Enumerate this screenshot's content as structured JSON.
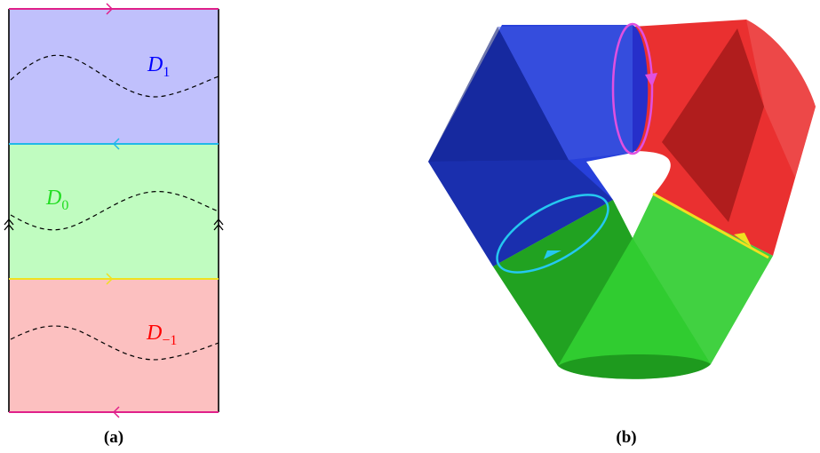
{
  "panel_a": {
    "caption": "(a)",
    "regions": [
      {
        "label": "D",
        "subscript": "1",
        "color": "#0000ff",
        "fill": "#c0c0fc"
      },
      {
        "label": "D",
        "subscript": "0",
        "color": "#22dd22",
        "fill": "#c0fcc0"
      },
      {
        "label": "D",
        "subscript": "−1",
        "color": "#ff0000",
        "fill": "#fcc0c0"
      }
    ],
    "boundary_colors": {
      "top": "#e0208a",
      "between_1_0": "#20b8e8",
      "between_0_-1": "#f0e020",
      "bottom": "#e0208a",
      "sides": "#000000"
    }
  },
  "panel_b": {
    "caption": "(b)",
    "segment_colors": {
      "blue": "#1530d8",
      "red": "#e81a1a",
      "green": "#1ec81e"
    },
    "loop_colors": {
      "magenta": "#e050e0",
      "cyan": "#25c8f0",
      "yellow": "#f0e020"
    }
  }
}
